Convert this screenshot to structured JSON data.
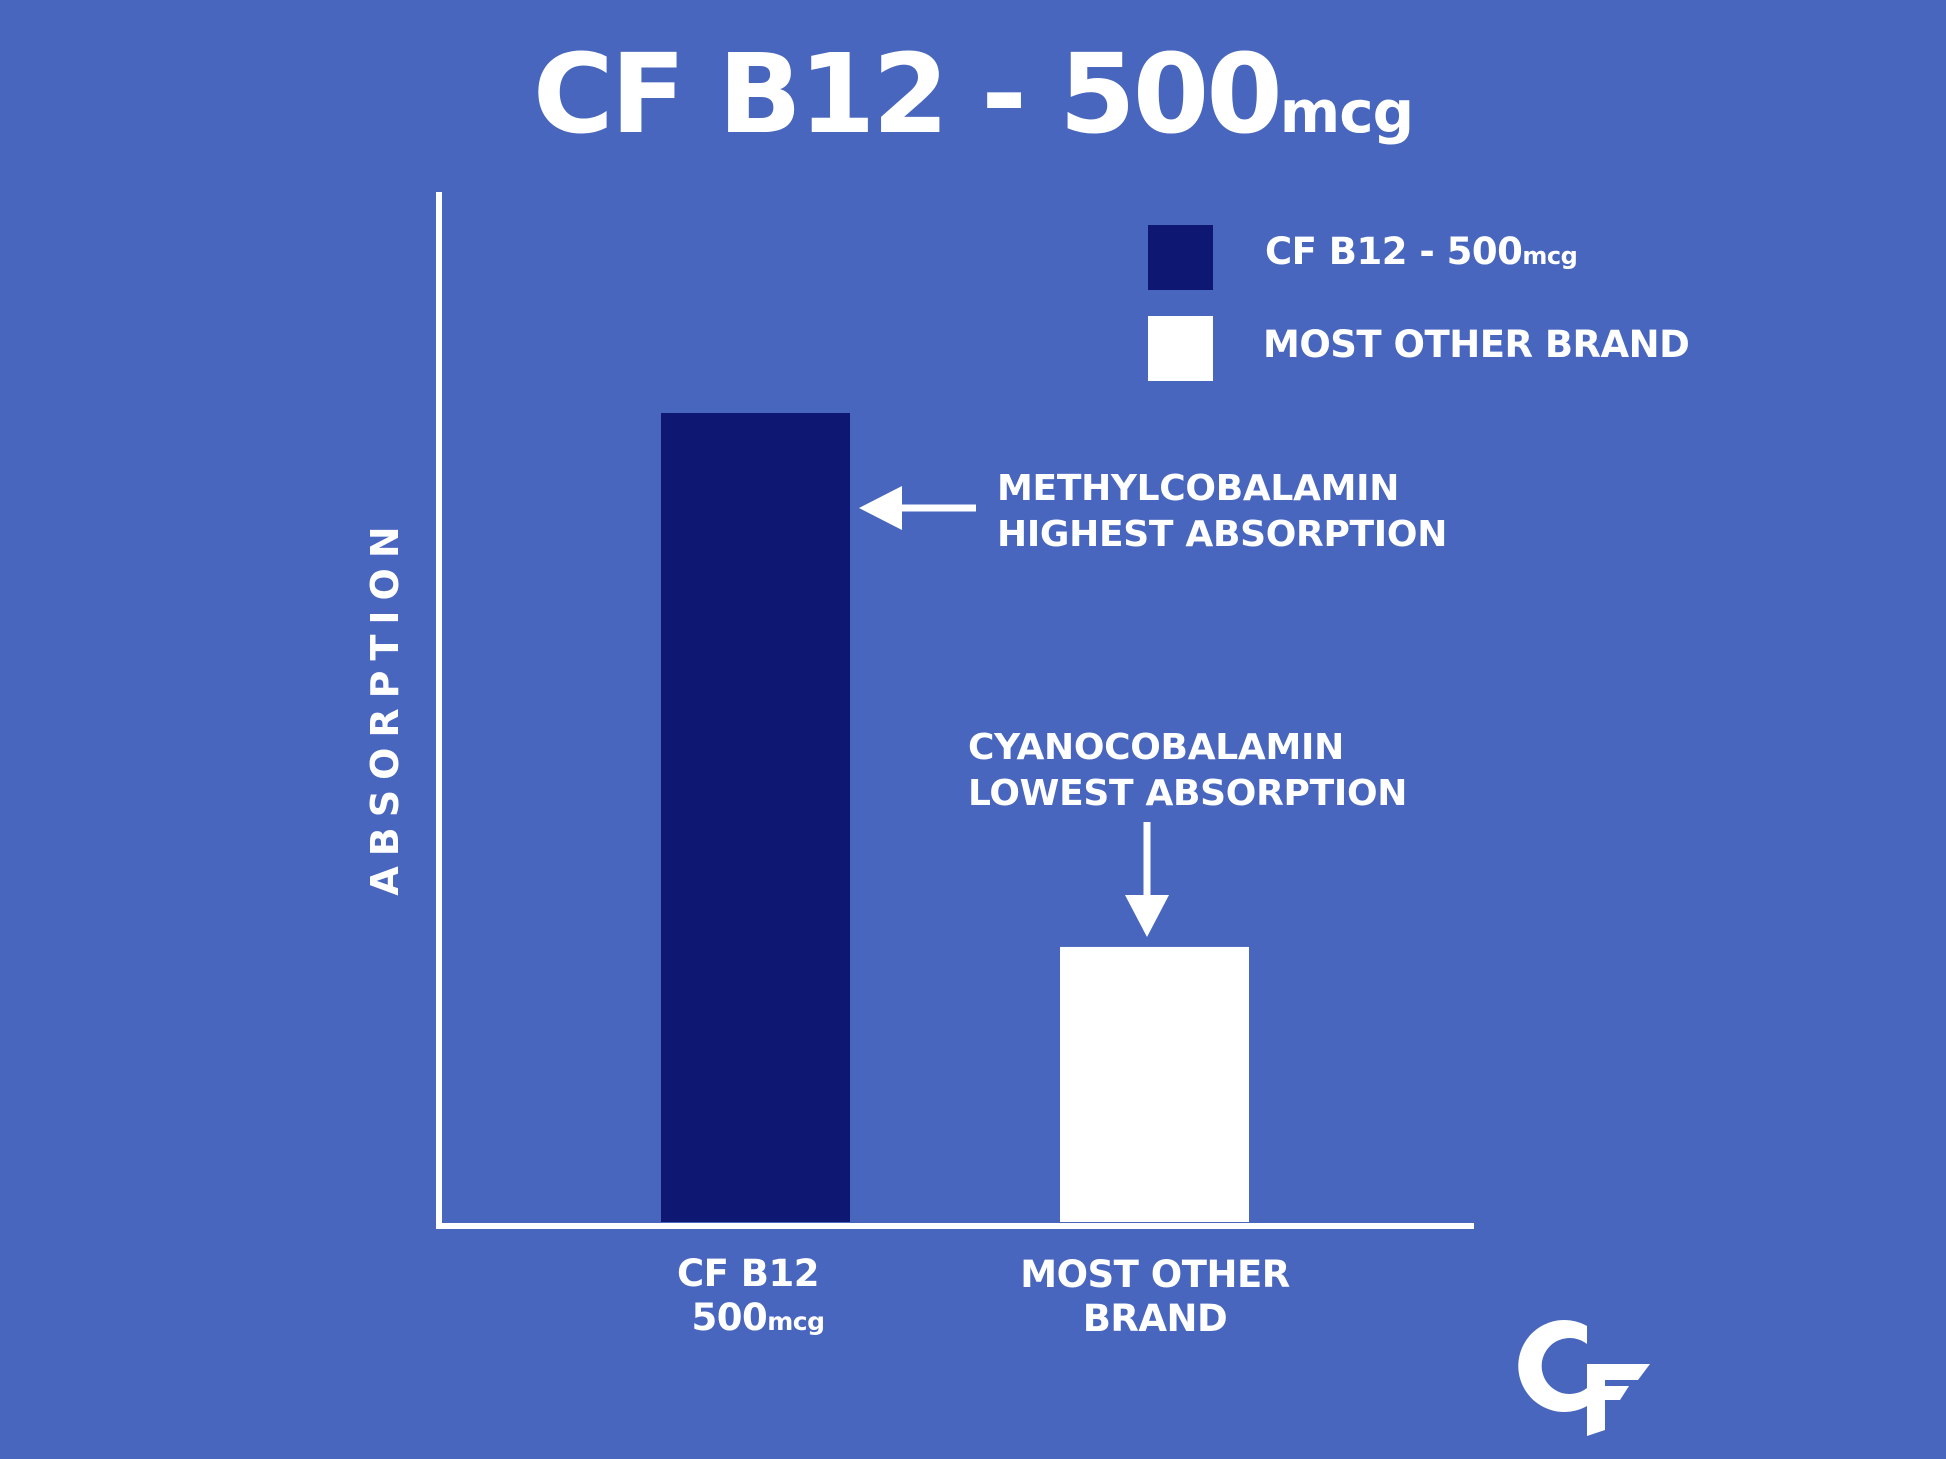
{
  "colors": {
    "background": "#4966bf",
    "cf_b12": "#0e1872",
    "other_brand": "#ffffff",
    "axis": "#ffffff"
  },
  "chart_data": {
    "type": "bar",
    "title": "CF B12 - 500",
    "title_unit": "mcg",
    "ylabel": "ABSORPTION",
    "xlabel": "",
    "categories": [
      {
        "line1": "CF B12",
        "line2": "500",
        "unit": "mcg"
      },
      {
        "line1": "MOST OTHER",
        "line2": "BRAND",
        "unit": ""
      }
    ],
    "values": [
      100,
      34
    ],
    "ylim": [
      0,
      100
    ],
    "grid": false,
    "legend_position": "top-right",
    "legend": [
      {
        "label": "CF B12 - 500",
        "unit": "mcg",
        "color": "#0e1872"
      },
      {
        "label": "MOST OTHER BRAND",
        "unit": "",
        "color": "#ffffff"
      }
    ],
    "annotations": [
      {
        "line1": "METHYLCOBALAMIN",
        "line2": "HIGHEST ABSORPTION",
        "arrow": "left",
        "target": "CF B12"
      },
      {
        "line1": "CYANOCOBALAMIN",
        "line2": "LOWEST ABSORPTION",
        "arrow": "down",
        "target": "MOST OTHER BRAND"
      }
    ]
  },
  "logo": {
    "text": "CF",
    "icon": "cf-logo-icon"
  }
}
